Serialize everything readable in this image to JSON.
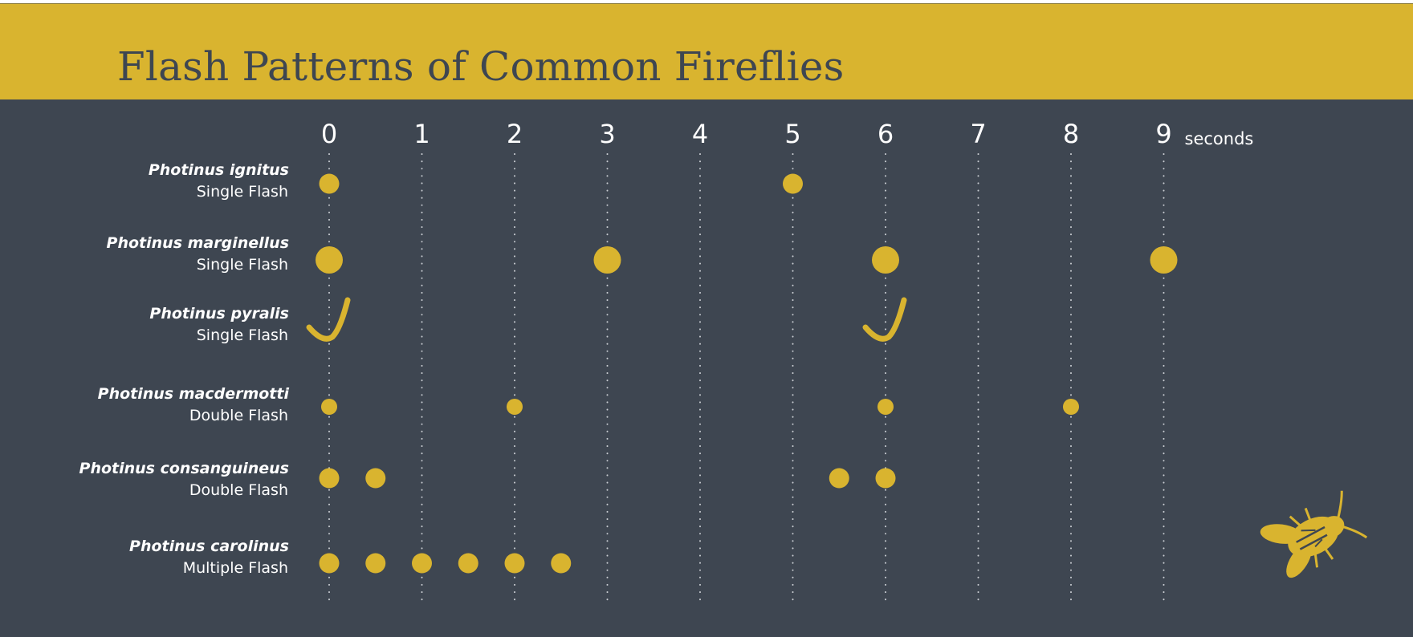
{
  "title": "Flash Patterns of Common Fireflies",
  "colors": {
    "banner": "#d9b42f",
    "background": "#3e4651",
    "flash": "#d9b42f",
    "text": "#ffffff"
  },
  "icon": "firefly-icon",
  "chart_data": {
    "type": "scatter",
    "title": "Flash Patterns of Common Fireflies",
    "x_ticks": [
      "0",
      "1",
      "2",
      "3",
      "4",
      "5",
      "6",
      "7",
      "8",
      "9"
    ],
    "x_unit": "seconds",
    "xlim": [
      0,
      9
    ],
    "grid": "vertical dotted lines at each second",
    "rows": [
      {
        "species": "Photinus ignitus",
        "pattern": "Single Flash",
        "mark": "dot",
        "size": "medium",
        "times": [
          0,
          5
        ]
      },
      {
        "species": "Photinus marginellus",
        "pattern": "Single Flash",
        "mark": "dot",
        "size": "large",
        "times": [
          0,
          3,
          6,
          9
        ]
      },
      {
        "species": "Photinus pyralis",
        "pattern": "Single Flash",
        "mark": "j-swoosh",
        "size": "large",
        "times": [
          0,
          6
        ]
      },
      {
        "species": "Photinus macdermotti",
        "pattern": "Double Flash",
        "mark": "dot",
        "size": "small",
        "times": [
          0,
          2,
          6,
          8
        ]
      },
      {
        "species": "Photinus consanguineus",
        "pattern": "Double Flash",
        "mark": "dot",
        "size": "medium",
        "times": [
          0,
          0.5,
          5.5,
          6
        ]
      },
      {
        "species": "Photinus carolinus",
        "pattern": "Multiple Flash",
        "mark": "dot",
        "size": "medium",
        "times": [
          0,
          0.5,
          1,
          1.5,
          2,
          2.5
        ]
      }
    ]
  }
}
